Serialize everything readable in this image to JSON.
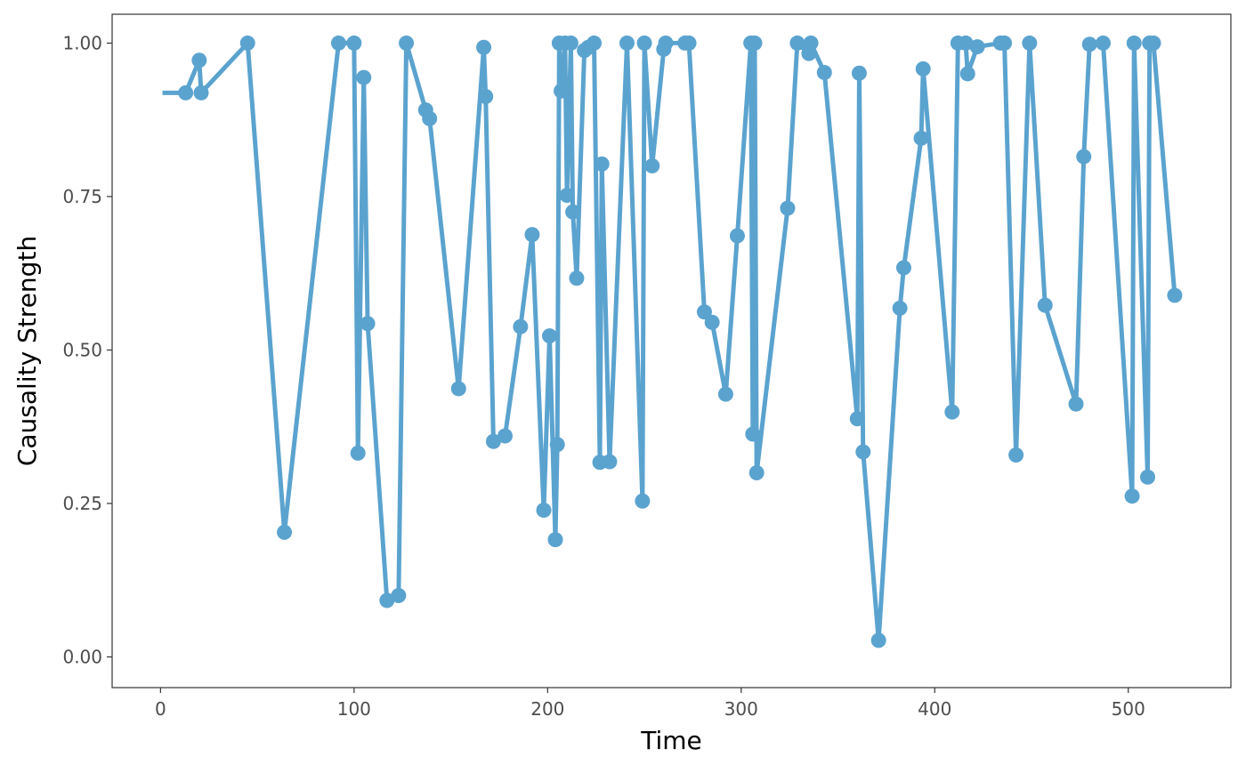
{
  "chart_data": {
    "type": "line",
    "title": "",
    "xlabel": "Time",
    "ylabel": "Causality Strength",
    "xlim": [
      -25,
      553
    ],
    "ylim": [
      -0.05,
      1.047
    ],
    "x_ticks": [
      0,
      100,
      200,
      300,
      400,
      500
    ],
    "x_tick_labels": [
      "0",
      "100",
      "200",
      "300",
      "400",
      "500"
    ],
    "y_ticks": [
      0,
      0.25,
      0.5,
      0.75,
      1.0
    ],
    "y_tick_labels": [
      "0.00",
      "0.25",
      "0.50",
      "0.75",
      "1.00"
    ],
    "grid": false,
    "panel_border": true,
    "color": "#5BA3CF",
    "series": [
      {
        "x": [
          1,
          13,
          20,
          21,
          45,
          64,
          92,
          100,
          102,
          105,
          107,
          117,
          123,
          127,
          137,
          139,
          154,
          167,
          168,
          172,
          178,
          186,
          192,
          198,
          201,
          204,
          205,
          206,
          207,
          209,
          210,
          212,
          213,
          215,
          219,
          221,
          224,
          227,
          228,
          232,
          241,
          249,
          250,
          254,
          260,
          261,
          271,
          273,
          281,
          285,
          292,
          298,
          305,
          306,
          307,
          308,
          324,
          329,
          335,
          336,
          343,
          360,
          361,
          363,
          371,
          382,
          384,
          393,
          394,
          409,
          412,
          416,
          417,
          422,
          434,
          436,
          442,
          449,
          457,
          473,
          477,
          480,
          487,
          502,
          503,
          510,
          511,
          513,
          524
        ],
        "y": [
          0.919,
          0.919,
          0.972,
          0.919,
          1.0,
          0.203,
          1.0,
          1.0,
          0.332,
          0.944,
          0.543,
          0.092,
          0.1,
          1.0,
          0.891,
          0.877,
          0.437,
          0.993,
          0.913,
          0.351,
          0.36,
          0.538,
          0.688,
          0.239,
          0.523,
          0.191,
          0.346,
          1.0,
          0.922,
          1.0,
          0.752,
          1.0,
          0.725,
          0.617,
          0.988,
          0.993,
          1.0,
          0.317,
          0.803,
          0.318,
          1.0,
          0.254,
          1.0,
          0.8,
          0.99,
          1.0,
          1.0,
          1.0,
          0.562,
          0.545,
          0.428,
          0.686,
          1.0,
          0.363,
          1.0,
          0.3,
          0.731,
          1.0,
          0.983,
          1.0,
          0.952,
          0.388,
          0.951,
          0.334,
          0.027,
          0.568,
          0.634,
          0.845,
          0.958,
          0.399,
          1.0,
          1.0,
          0.95,
          0.994,
          1.0,
          1.0,
          0.329,
          1.0,
          0.573,
          0.412,
          0.815,
          0.998,
          1.0,
          0.262,
          1.0,
          0.293,
          1.0,
          1.0,
          0.589
        ]
      }
    ]
  }
}
